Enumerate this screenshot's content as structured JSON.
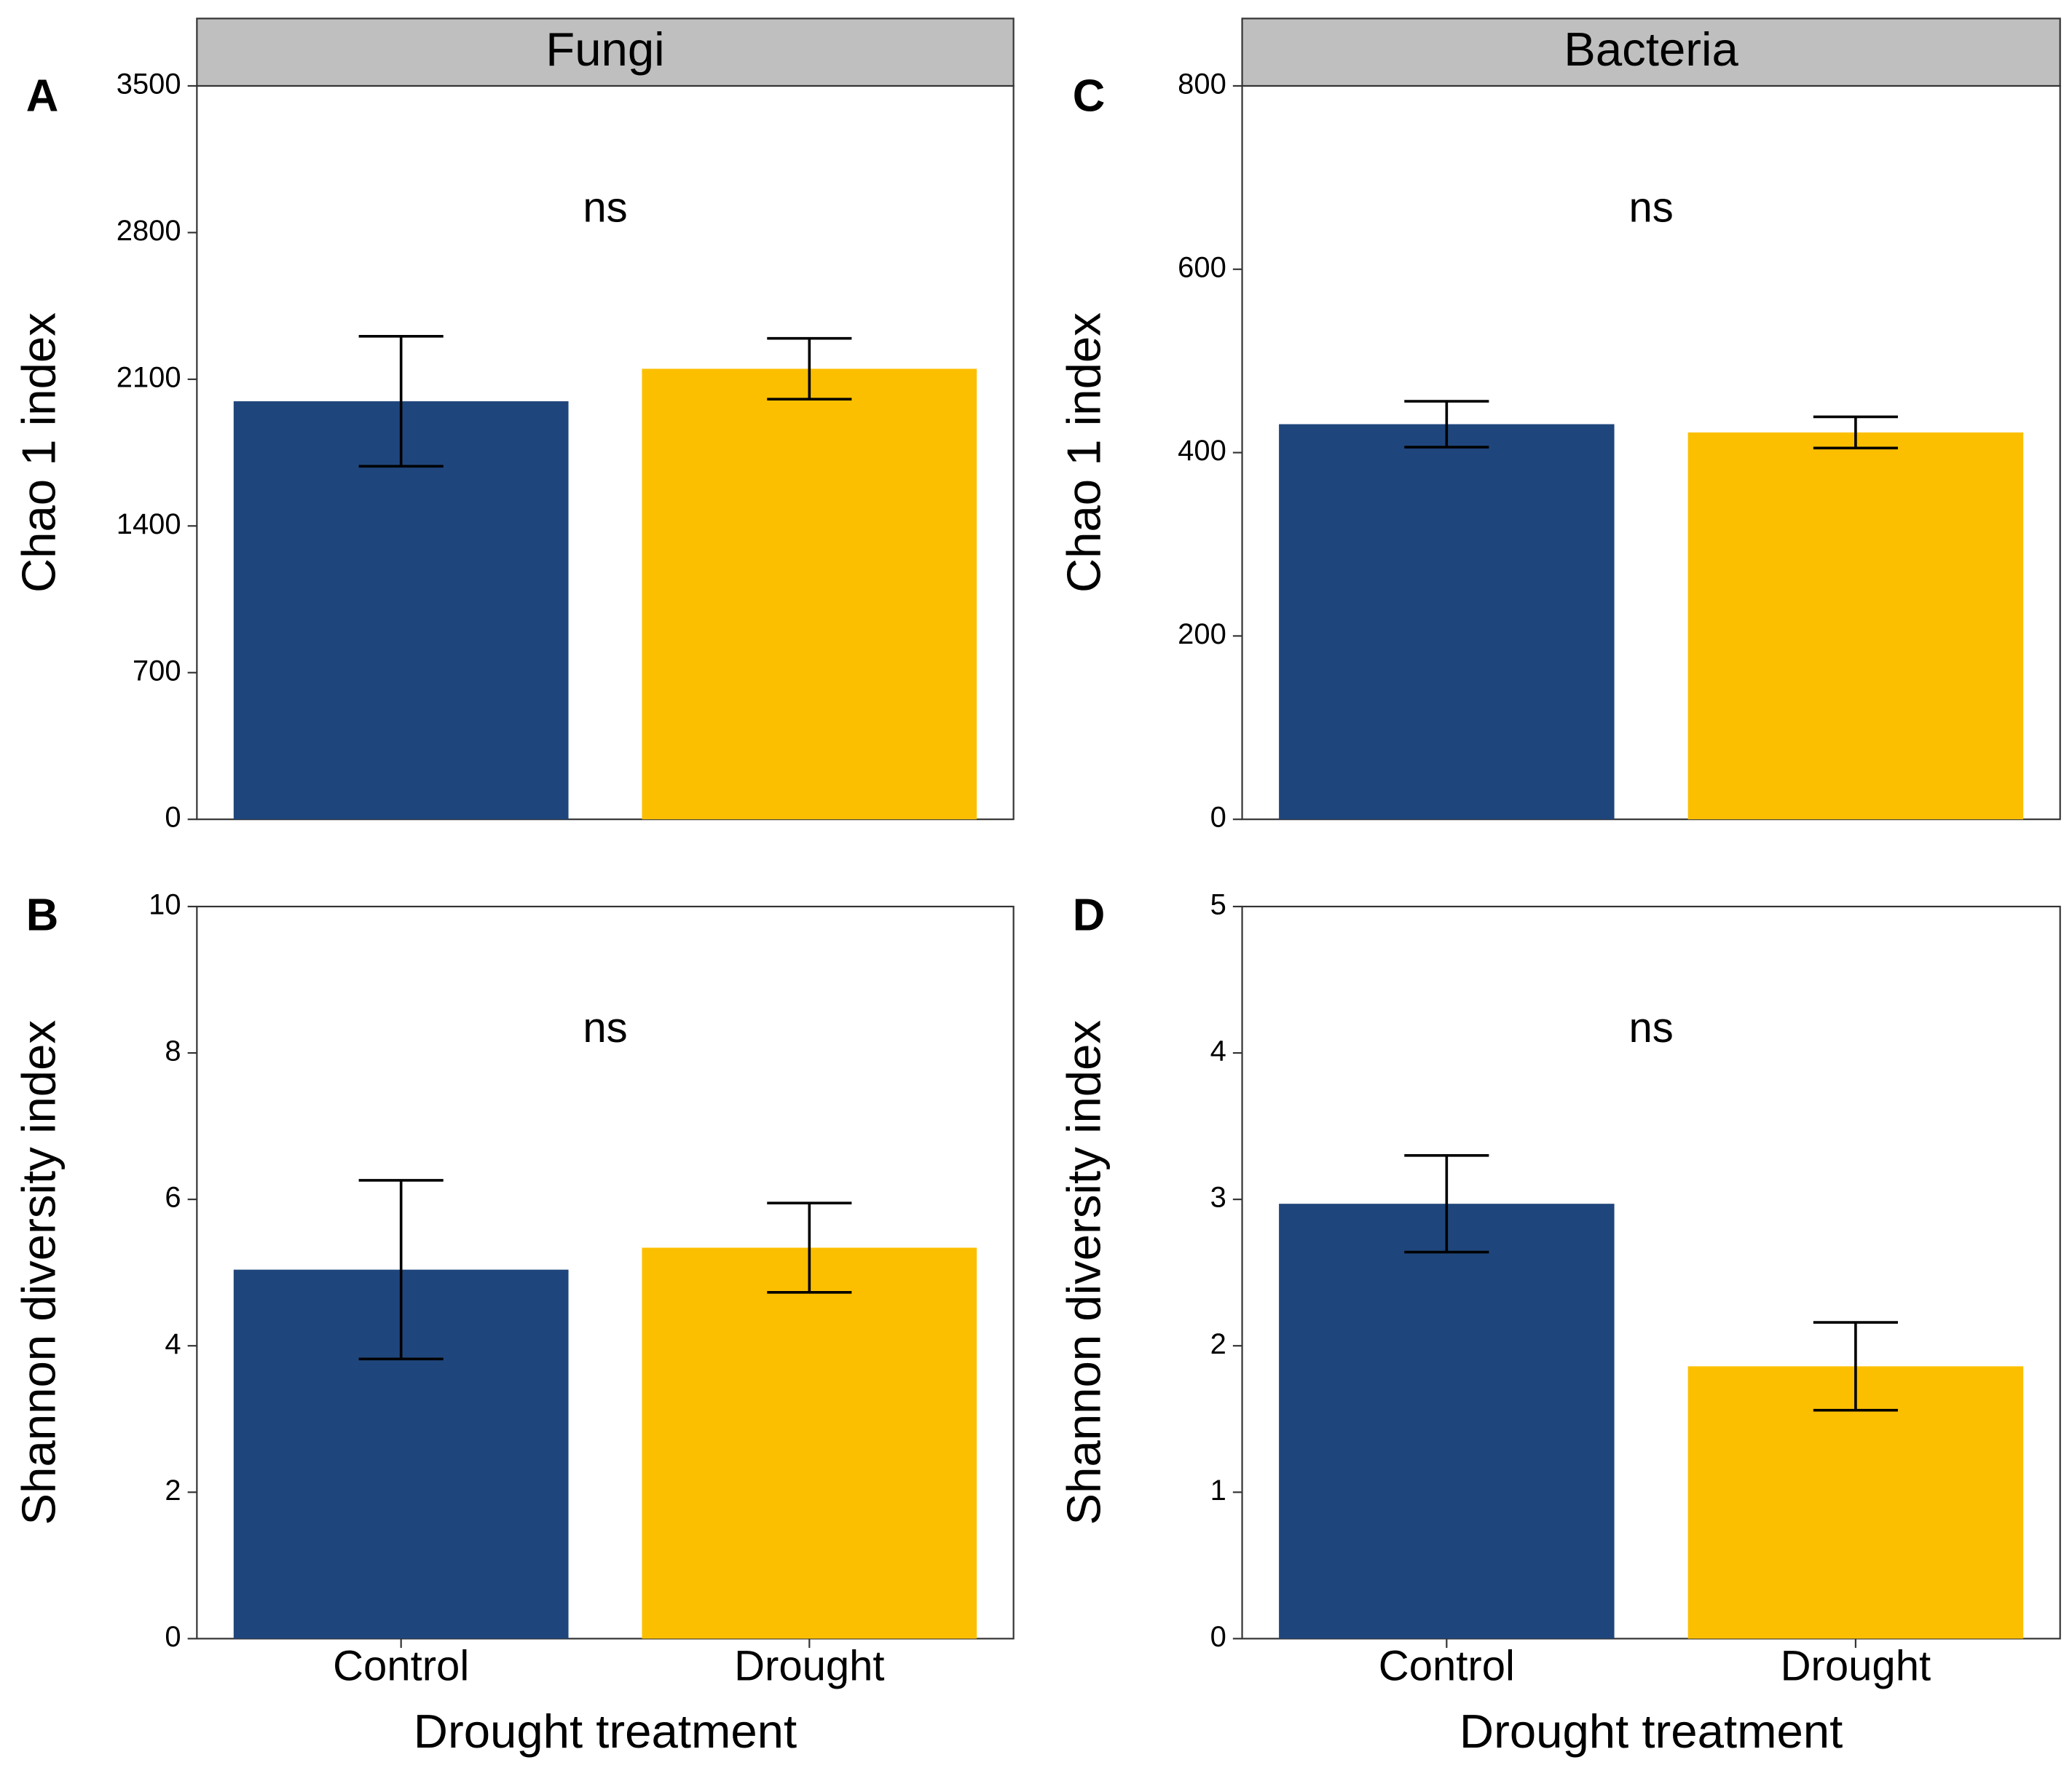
{
  "chart_data": [
    {
      "type": "bar",
      "panel": "A",
      "strip": "Fungi",
      "ylabel": "Chao 1 index",
      "annotation": "ns",
      "values": [
        1995,
        2150
      ],
      "errors": [
        310,
        145
      ],
      "colors": [
        "#1f467c",
        "#fcbf00"
      ],
      "ylim": [
        0,
        3500
      ],
      "yticks": [
        0,
        700,
        1400,
        2100,
        2800,
        3500
      ]
    },
    {
      "type": "bar",
      "panel": "C",
      "strip": "Bacteria",
      "ylabel": "Chao 1 index",
      "annotation": "ns",
      "values": [
        431,
        422
      ],
      "errors": [
        25,
        17
      ],
      "colors": [
        "#1f467c",
        "#fcbf00"
      ],
      "ylim": [
        0,
        800
      ],
      "yticks": [
        0,
        200,
        400,
        600,
        800
      ]
    },
    {
      "type": "bar",
      "panel": "B",
      "ylabel": "Shannon diversity index",
      "xlabel": "Drought treatment",
      "annotation": "ns",
      "categories": [
        "Control",
        "Drought"
      ],
      "values": [
        5.04,
        5.34
      ],
      "errors": [
        1.22,
        0.61
      ],
      "colors": [
        "#1f467c",
        "#fcbf00"
      ],
      "ylim": [
        0,
        10
      ],
      "yticks": [
        0,
        2,
        4,
        6,
        8,
        10
      ]
    },
    {
      "type": "bar",
      "panel": "D",
      "ylabel": "Shannon diversity index",
      "xlabel": "Drought treatment",
      "annotation": "ns",
      "categories": [
        "Control",
        "Drought"
      ],
      "values": [
        2.97,
        1.86
      ],
      "errors": [
        0.33,
        0.3
      ],
      "colors": [
        "#1f467c",
        "#fcbf00"
      ],
      "ylim": [
        0,
        5
      ],
      "yticks": [
        0,
        1,
        2,
        3,
        4,
        5
      ]
    }
  ]
}
